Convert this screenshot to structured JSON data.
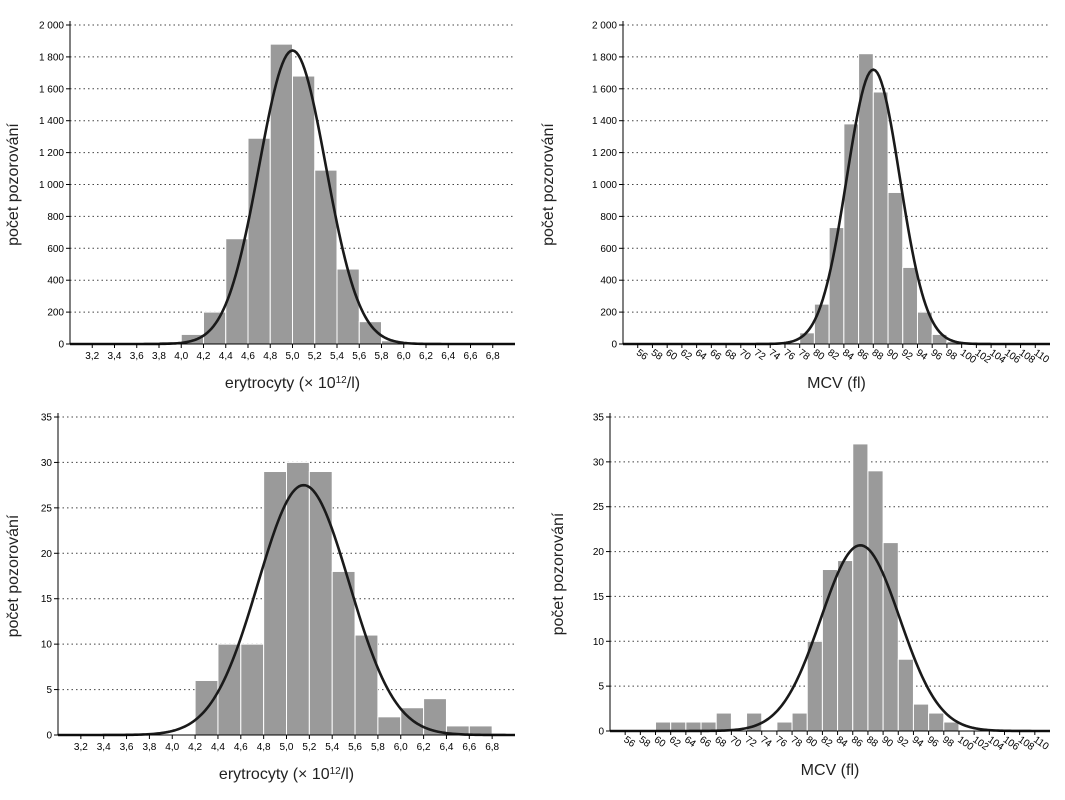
{
  "colors": {
    "bar": "#9a9a9a",
    "bar_edge": "#ffffff",
    "curve": "#1a1a1a",
    "grid": "#444444",
    "axis": "#000000"
  },
  "chart_data": [
    {
      "type": "bar",
      "xlabel_main": "erytrocyty (× 10",
      "xlabel_sup": "12",
      "xlabel_tail": "/l)",
      "ylabel": "počet pozorování",
      "ylim": [
        0,
        2000
      ],
      "yticks": [
        "0",
        "200",
        "400",
        "600",
        "800",
        "1 000",
        "1 200",
        "1 400",
        "1 600",
        "1 800",
        "2 000"
      ],
      "xlim": [
        3.0,
        7.0
      ],
      "xtick_rotate": false,
      "xticks": [
        "3,2",
        "3,4",
        "3,6",
        "3,8",
        "4,0",
        "4,2",
        "4,4",
        "4,6",
        "4,8",
        "5,0",
        "5,2",
        "5,4",
        "5,6",
        "5,8",
        "6,0",
        "6,2",
        "6,4",
        "6,6",
        "6,8"
      ],
      "bar_width": 0.2,
      "bars": {
        "x": [
          3.7,
          3.9,
          4.1,
          4.3,
          4.5,
          4.7,
          4.9,
          5.1,
          5.3,
          5.5,
          5.7,
          5.9
        ],
        "values": [
          5,
          15,
          60,
          200,
          660,
          1290,
          1880,
          1680,
          1090,
          470,
          140,
          20
        ]
      },
      "curve": {
        "mean": 5.0,
        "sd": 0.3,
        "peak": 1840
      }
    },
    {
      "type": "bar",
      "xlabel_main": "MCV (fl)",
      "xlabel_sup": "",
      "xlabel_tail": "",
      "ylabel": "počet pozorování",
      "ylim": [
        0,
        2000
      ],
      "yticks": [
        "0",
        "200",
        "400",
        "600",
        "800",
        "1 000",
        "1 200",
        "1 400",
        "1 600",
        "1 800",
        "2 000"
      ],
      "xlim": [
        54,
        112
      ],
      "xtick_rotate": true,
      "xticks": [
        "56",
        "58",
        "60",
        "62",
        "64",
        "66",
        "68",
        "70",
        "72",
        "74",
        "76",
        "78",
        "80",
        "82",
        "84",
        "86",
        "88",
        "90",
        "92",
        "94",
        "96",
        "98",
        "100",
        "102",
        "104",
        "106",
        "108",
        "110"
      ],
      "bar_width": 2,
      "bars": {
        "x": [
          77,
          79,
          81,
          83,
          85,
          87,
          89,
          91,
          93,
          95,
          97,
          99
        ],
        "values": [
          10,
          70,
          250,
          730,
          1380,
          1820,
          1580,
          950,
          480,
          200,
          60,
          15
        ]
      },
      "curve": {
        "mean": 88,
        "sd": 3.6,
        "peak": 1720
      }
    },
    {
      "type": "bar",
      "xlabel_main": "erytrocyty (× 10",
      "xlabel_sup": "12",
      "xlabel_tail": "/l)",
      "ylabel": "počet pozorování",
      "ylim": [
        0,
        35
      ],
      "yticks": [
        "0",
        "5",
        "10",
        "15",
        "20",
        "25",
        "30",
        "35"
      ],
      "xlim": [
        3.0,
        7.0
      ],
      "xtick_rotate": false,
      "xticks": [
        "3,2",
        "3,4",
        "3,6",
        "3,8",
        "4,0",
        "4,2",
        "4,4",
        "4,6",
        "4,8",
        "5,0",
        "5,2",
        "5,4",
        "5,6",
        "5,8",
        "6,0",
        "6,2",
        "6,4",
        "6,6",
        "6,8"
      ],
      "bar_width": 0.2,
      "bars": {
        "x": [
          4.3,
          4.5,
          4.7,
          4.9,
          5.1,
          5.3,
          5.5,
          5.7,
          5.9,
          6.1,
          6.3,
          6.5,
          6.7
        ],
        "values": [
          6,
          10,
          10,
          29,
          30,
          29,
          18,
          11,
          2,
          3,
          4,
          1,
          1
        ]
      },
      "curve": {
        "mean": 5.15,
        "sd": 0.4,
        "peak": 27.5
      }
    },
    {
      "type": "bar",
      "xlabel_main": "MCV (fl)",
      "xlabel_sup": "",
      "xlabel_tail": "",
      "ylabel": "počet pozorování",
      "ylim": [
        0,
        35
      ],
      "yticks": [
        "0",
        "5",
        "10",
        "15",
        "20",
        "25",
        "30",
        "35"
      ],
      "xlim": [
        54,
        112
      ],
      "xtick_rotate": true,
      "xticks": [
        "56",
        "58",
        "60",
        "62",
        "64",
        "66",
        "68",
        "70",
        "72",
        "74",
        "76",
        "78",
        "80",
        "82",
        "84",
        "86",
        "88",
        "90",
        "92",
        "94",
        "96",
        "98",
        "100",
        "102",
        "104",
        "106",
        "108",
        "110"
      ],
      "bar_width": 2,
      "bars": {
        "x": [
          61,
          63,
          65,
          67,
          69,
          73,
          77,
          79,
          81,
          83,
          85,
          87,
          89,
          91,
          93,
          95,
          97,
          99
        ],
        "values": [
          1,
          1,
          1,
          1,
          2,
          2,
          1,
          2,
          10,
          18,
          19,
          32,
          29,
          21,
          8,
          3,
          2,
          1
        ]
      },
      "curve": {
        "mean": 87,
        "sd": 5.2,
        "peak": 20.7
      }
    }
  ]
}
